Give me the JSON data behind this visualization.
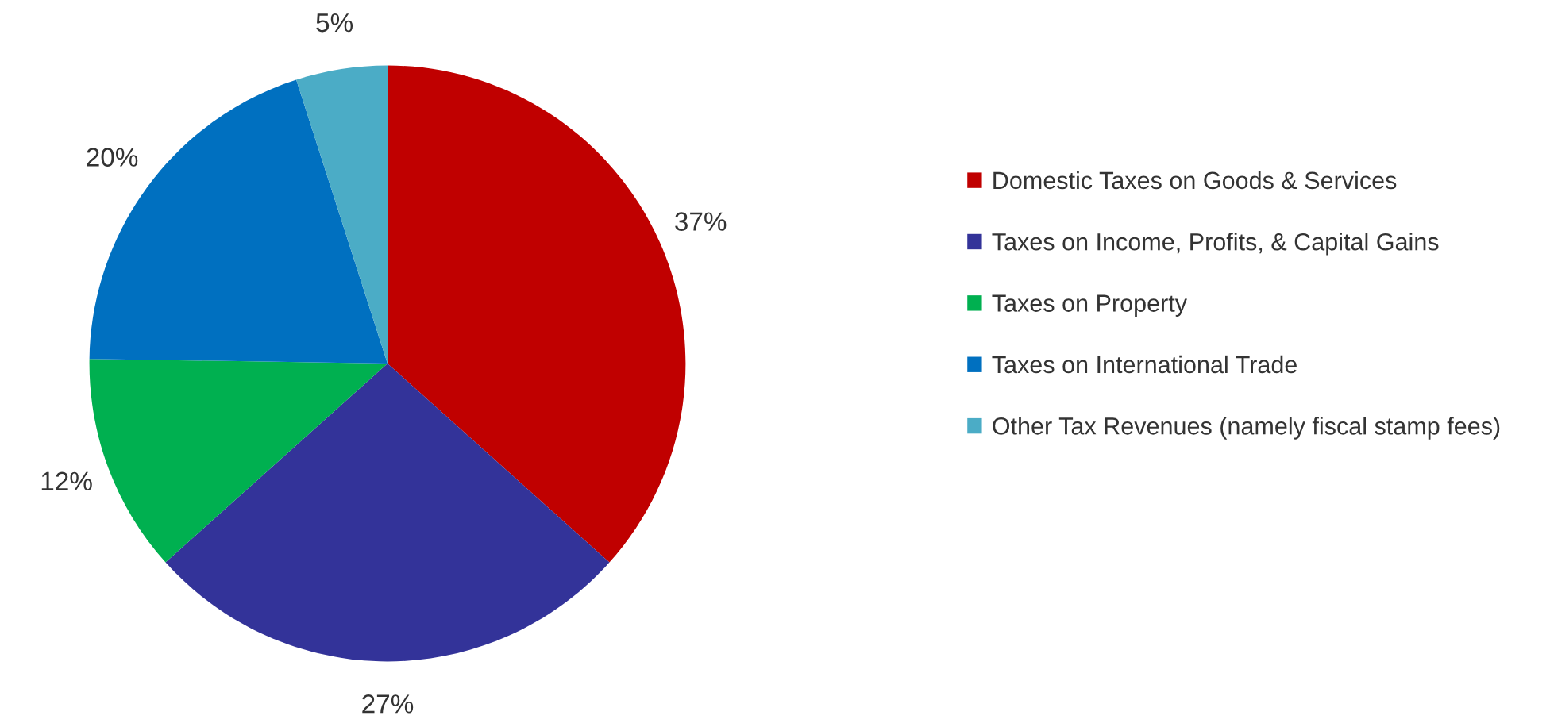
{
  "chart_data": {
    "type": "pie",
    "categories": [
      "Domestic Taxes on Goods & Services",
      "Taxes on Income, Profits, & Capital Gains",
      "Taxes on Property",
      "Taxes on International Trade",
      "Other Tax Revenues (namely fiscal stamp fees)"
    ],
    "values": [
      37,
      27,
      12,
      20,
      5
    ],
    "value_labels": [
      "37%",
      "27%",
      "12%",
      "20%",
      "5%"
    ],
    "colors": [
      "#c00000",
      "#333399",
      "#00b050",
      "#0070c0",
      "#4bacc6"
    ],
    "legend": "right"
  }
}
